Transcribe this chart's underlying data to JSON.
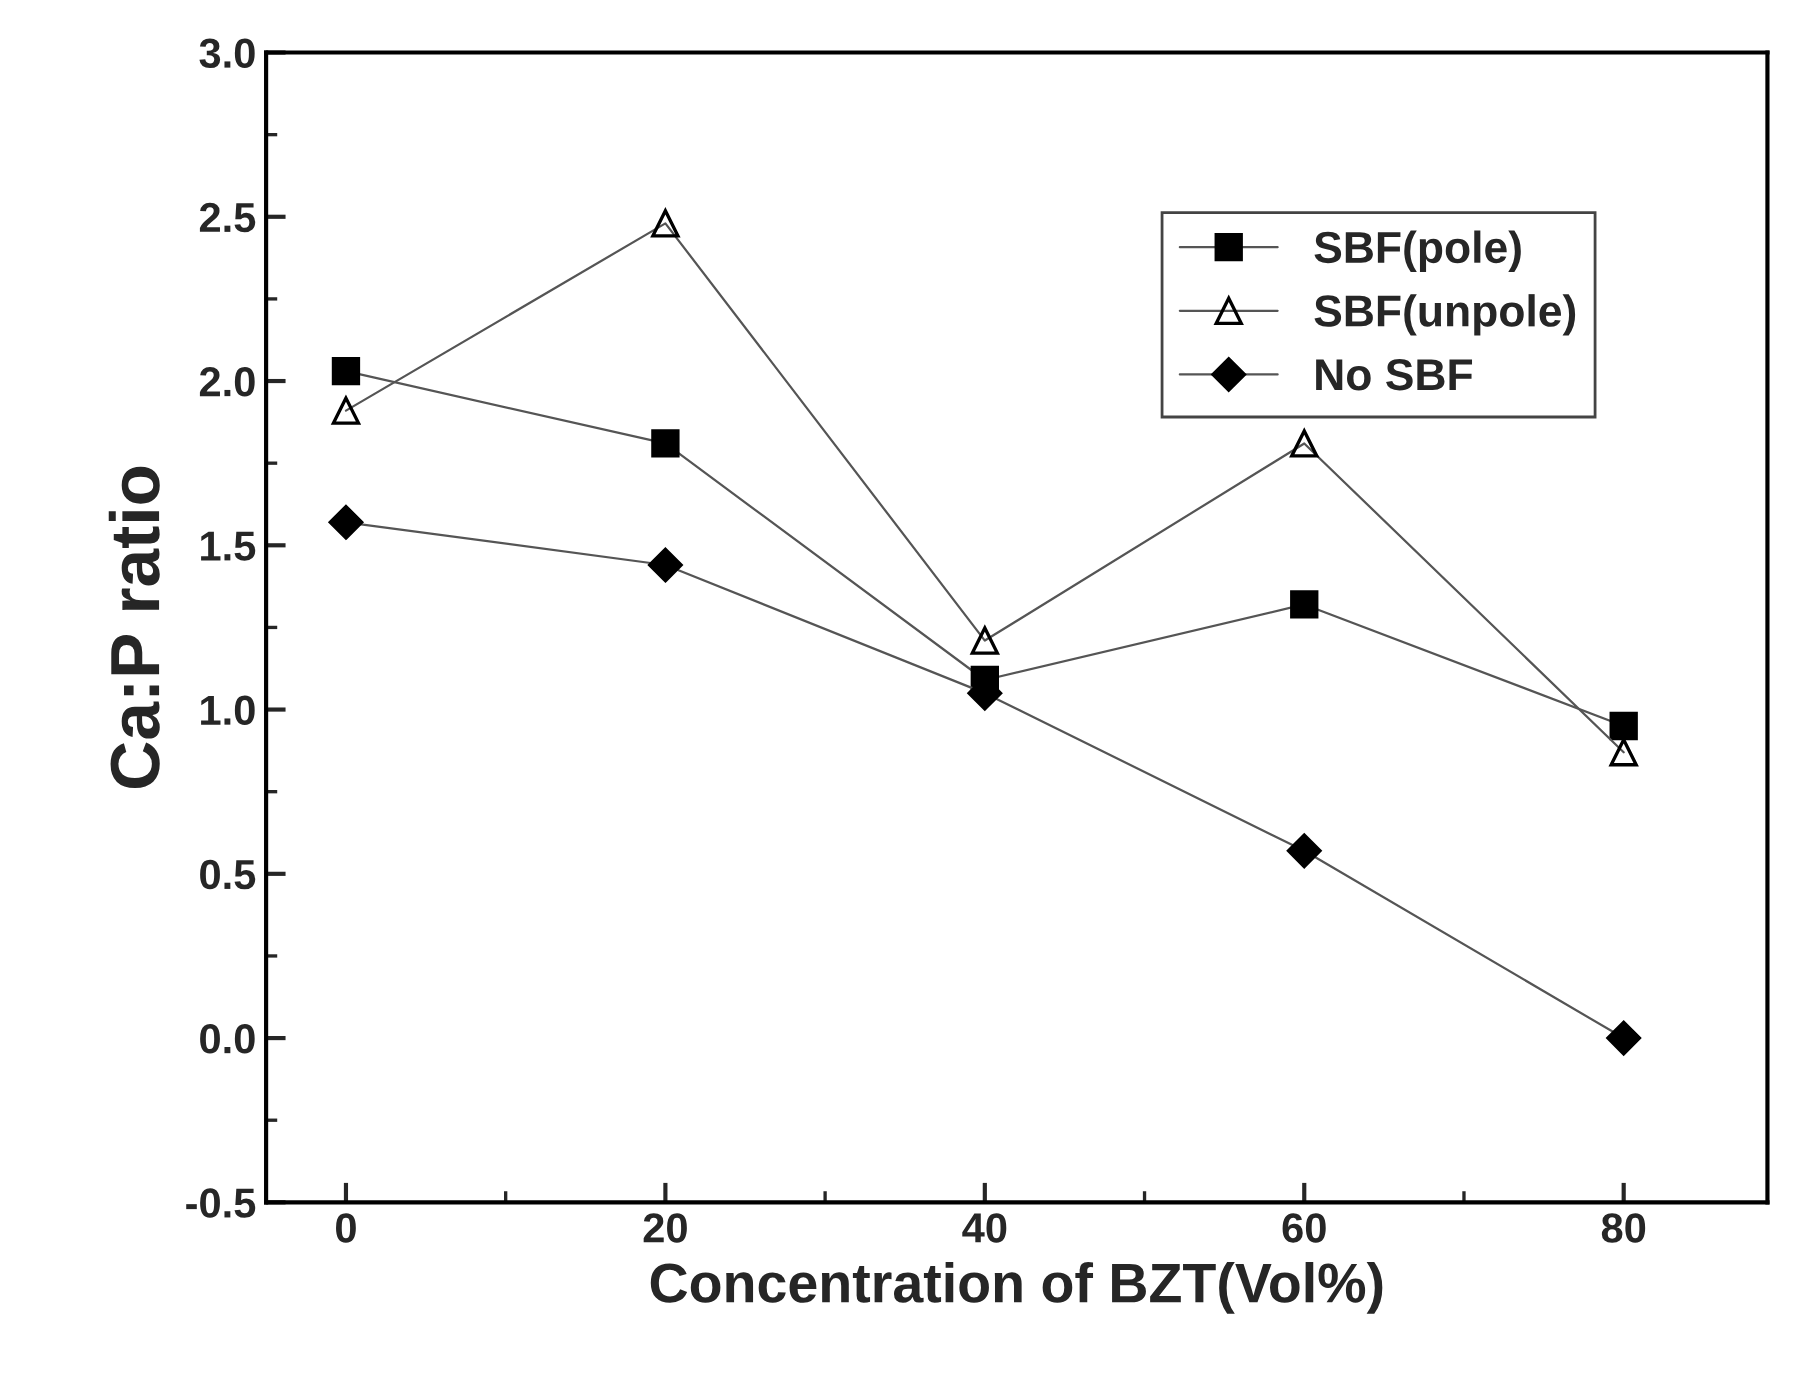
{
  "chart_data": {
    "type": "line",
    "xlabel": "Concentration of BZT(Vol%)",
    "ylabel": "Ca:P ratio",
    "x": [
      0,
      20,
      40,
      60,
      80
    ],
    "series": [
      {
        "name": "SBF(pole)",
        "color": "#000000",
        "marker": "square",
        "values": [
          2.03,
          1.81,
          1.09,
          1.32,
          0.95
        ]
      },
      {
        "name": "SBF(unpole)",
        "color": "#000000",
        "marker": "triangle",
        "values": [
          1.91,
          2.48,
          1.21,
          1.81,
          0.87
        ]
      },
      {
        "name": "No SBF",
        "color": "#000000",
        "marker": "diamond",
        "values": [
          1.57,
          1.44,
          1.05,
          0.57,
          0.0
        ]
      }
    ],
    "xlim": [
      -5,
      89
    ],
    "ylim": [
      -0.5,
      3.0
    ],
    "xticks": [
      0,
      20,
      40,
      60,
      80
    ],
    "yticks": [
      {
        "value": -0.5,
        "label": "-0.5"
      },
      {
        "value": 0,
        "label": "0.0"
      },
      {
        "value": 0.5,
        "label": "0.5"
      },
      {
        "value": 1.0,
        "label": "1.0"
      },
      {
        "value": 1.5,
        "label": "1.5"
      },
      {
        "value": 2.0,
        "label": "2.0"
      },
      {
        "value": 2.5,
        "label": "2.5"
      },
      {
        "value": 3.0,
        "label": "3.0"
      }
    ],
    "grid": false,
    "legend": "top right",
    "line_style": "solid"
  }
}
